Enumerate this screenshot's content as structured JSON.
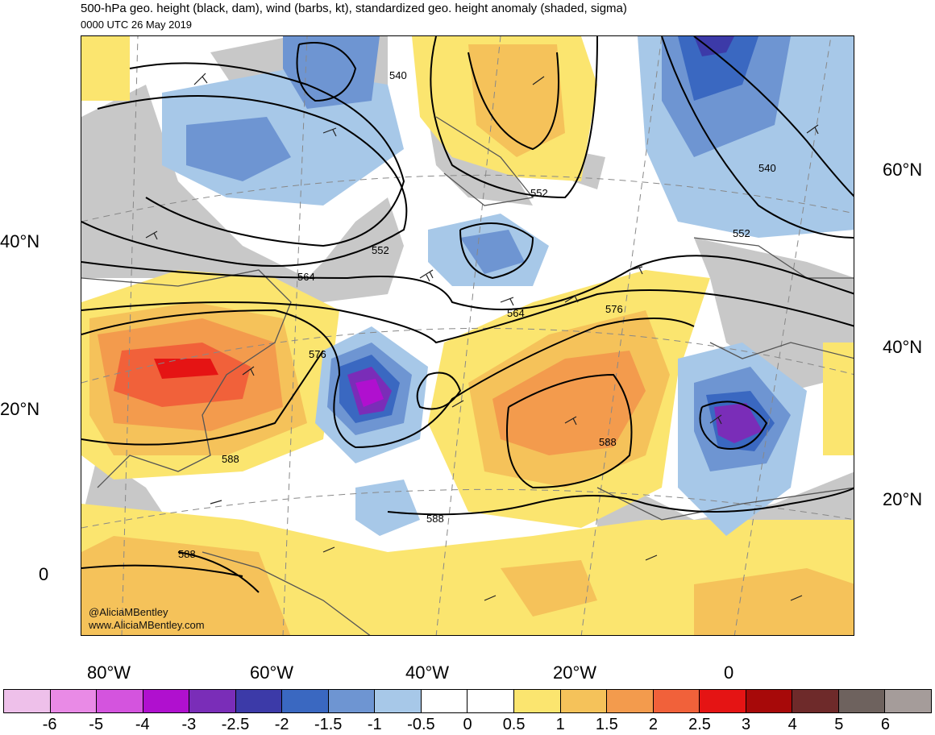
{
  "header": {
    "title": "500-hPa geo. height (black, dam), wind (barbs, kt), standardized geo. height anomaly (shaded, sigma)",
    "subtitle": "0000 UTC 26 May 2019"
  },
  "map": {
    "contour_labels": [
      "540",
      "552",
      "552",
      "552",
      "564",
      "564",
      "576",
      "576",
      "588",
      "588",
      "588",
      "540",
      "552",
      "588"
    ],
    "lat_labels_left": [
      "40°N",
      "20°N",
      "0"
    ],
    "lat_labels_right": [
      "60°N",
      "40°N",
      "20°N"
    ],
    "lon_labels": [
      "80°W",
      "60°W",
      "40°W",
      "20°W",
      "0"
    ],
    "credits": [
      "@AliciaMBentley",
      "www.AliciaMBentley.com"
    ]
  },
  "colorbar": {
    "colors": [
      "#eec0ea",
      "#e98ae6",
      "#d454de",
      "#b010cf",
      "#7a2db8",
      "#3c3aa8",
      "#3a68c1",
      "#6e95d2",
      "#a7c8e8",
      "#ffffff",
      "#ffffff",
      "#fbe56f",
      "#f5c25a",
      "#f39b4d",
      "#f1613a",
      "#e51414",
      "#a70909",
      "#6e2a2a",
      "#6e625e",
      "#a59c9a"
    ],
    "tick_labels": [
      "-6",
      "-5",
      "-4",
      "-3",
      "-2.5",
      "-2",
      "-1.5",
      "-1",
      "-0.5",
      "0",
      "0.5",
      "1",
      "1.5",
      "2",
      "2.5",
      "3",
      "4",
      "5",
      "6"
    ]
  }
}
